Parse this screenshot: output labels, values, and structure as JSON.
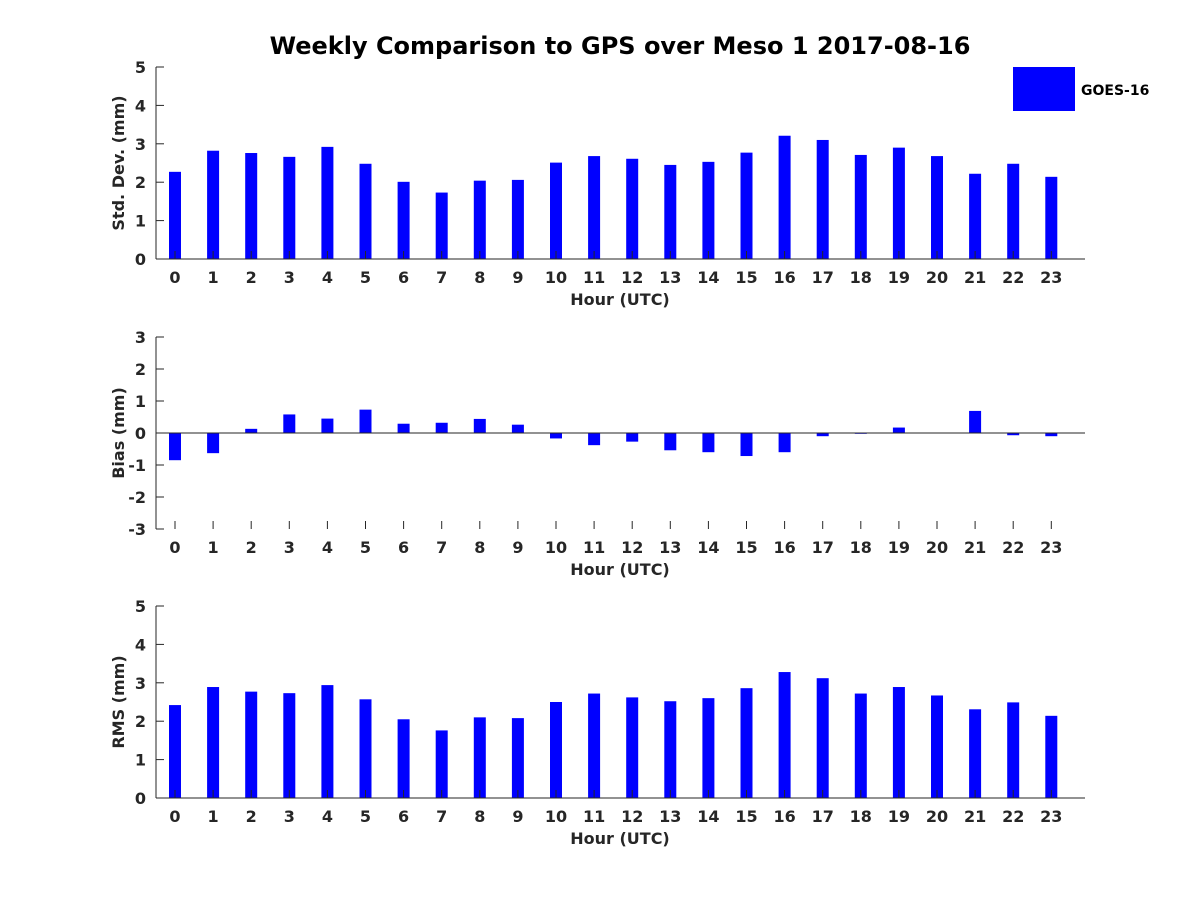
{
  "colors": {
    "bar": "#0000ff",
    "axis": "#262626",
    "background": "#ffffff"
  },
  "legend": {
    "label": "GOES-16",
    "placement": "top-right"
  },
  "chart_data": {
    "title": "Weekly Comparison to GPS over Meso 1 2017-08-16",
    "panels": [
      {
        "type": "bar",
        "xlabel": "Hour (UTC)",
        "ylabel": "Std. Dev. (mm)",
        "ylim": [
          0,
          5
        ],
        "yticks": [
          "0",
          "1",
          "2",
          "3",
          "4",
          "5"
        ],
        "categories": [
          "0",
          "1",
          "2",
          "3",
          "4",
          "5",
          "6",
          "7",
          "8",
          "9",
          "10",
          "11",
          "12",
          "13",
          "14",
          "15",
          "16",
          "17",
          "18",
          "19",
          "20",
          "21",
          "22",
          "23"
        ],
        "series": [
          {
            "name": "GOES-16",
            "values": [
              2.27,
              2.82,
              2.76,
              2.66,
              2.92,
              2.48,
              2.01,
              1.73,
              2.04,
              2.06,
              2.51,
              2.68,
              2.61,
              2.45,
              2.53,
              2.77,
              3.21,
              3.1,
              2.71,
              2.9,
              2.68,
              2.22,
              2.48,
              2.14
            ]
          }
        ]
      },
      {
        "type": "bar",
        "xlabel": "Hour (UTC)",
        "ylabel": "Bias (mm)",
        "ylim": [
          -3,
          3
        ],
        "yticks": [
          "-3",
          "-2",
          "-1",
          "0",
          "1",
          "2",
          "3"
        ],
        "categories": [
          "0",
          "1",
          "2",
          "3",
          "4",
          "5",
          "6",
          "7",
          "8",
          "9",
          "10",
          "11",
          "12",
          "13",
          "14",
          "15",
          "16",
          "17",
          "18",
          "19",
          "20",
          "21",
          "22",
          "23"
        ],
        "series": [
          {
            "name": "GOES-16",
            "values": [
              -0.85,
              -0.63,
              0.13,
              0.58,
              0.45,
              0.73,
              0.29,
              0.32,
              0.44,
              0.26,
              -0.17,
              -0.38,
              -0.27,
              -0.54,
              -0.6,
              -0.72,
              -0.6,
              -0.1,
              -0.02,
              0.17,
              0.01,
              0.69,
              -0.07,
              -0.1
            ]
          }
        ]
      },
      {
        "type": "bar",
        "xlabel": "Hour (UTC)",
        "ylabel": "RMS (mm)",
        "ylim": [
          0,
          5
        ],
        "yticks": [
          "0",
          "1",
          "2",
          "3",
          "4",
          "5"
        ],
        "categories": [
          "0",
          "1",
          "2",
          "3",
          "4",
          "5",
          "6",
          "7",
          "8",
          "9",
          "10",
          "11",
          "12",
          "13",
          "14",
          "15",
          "16",
          "17",
          "18",
          "19",
          "20",
          "21",
          "22",
          "23"
        ],
        "series": [
          {
            "name": "GOES-16",
            "values": [
              2.42,
              2.89,
              2.77,
              2.73,
              2.94,
              2.57,
              2.05,
              1.76,
              2.1,
              2.08,
              2.5,
              2.72,
              2.62,
              2.52,
              2.6,
              2.86,
              3.28,
              3.12,
              2.72,
              2.89,
              2.67,
              2.31,
              2.49,
              2.14
            ]
          }
        ]
      }
    ]
  }
}
